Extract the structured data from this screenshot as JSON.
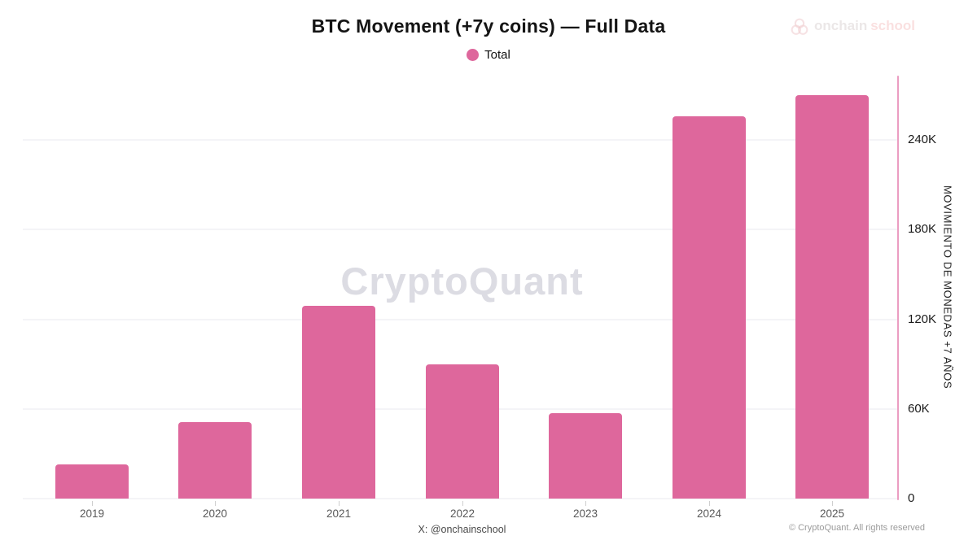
{
  "header": {
    "title": "BTC Movement (+7y coins) — Full Data",
    "legend": {
      "label": "Total"
    }
  },
  "brand": {
    "icon": "coins-stack-icon",
    "text_primary": "onchain",
    "text_accent": "school"
  },
  "watermark": "CryptoQuant",
  "chart_data": {
    "type": "bar",
    "title": "BTC Movement (+7y coins) — Full Data",
    "series_name": "Total",
    "categories": [
      "2019",
      "2020",
      "2021",
      "2022",
      "2023",
      "2024",
      "2025"
    ],
    "values": [
      23000,
      51000,
      129000,
      90000,
      57000,
      256000,
      270000
    ],
    "xlabel": "",
    "ylabel": "MOVIMIENTO DE MONEDAS +7 AÑOS",
    "yticks": [
      0,
      60000,
      120000,
      180000,
      240000
    ],
    "ytick_labels": [
      "0",
      "60K",
      "120K",
      "180K",
      "240K"
    ],
    "ylim": [
      0,
      283000
    ],
    "grid": true,
    "legend_position": "top",
    "y_axis_side": "right",
    "colors": {
      "bar": "#de679c",
      "legend_dot": "#de679c",
      "axis_line": "#eb9dc2",
      "gridline": "#f4f4f7",
      "watermark": "#dcdce3"
    }
  },
  "footer": {
    "caption": "X: @onchainschool",
    "copyright": "© CryptoQuant. All rights reserved"
  }
}
